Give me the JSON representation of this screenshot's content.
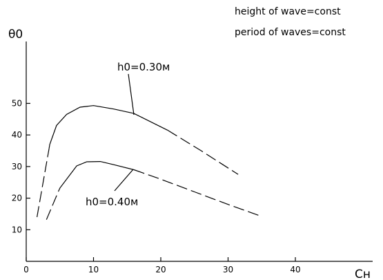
{
  "chart_data": {
    "type": "line",
    "xlabel": "Cн",
    "ylabel": "θ0",
    "xlim": [
      0,
      50
    ],
    "ylim": [
      0,
      55
    ],
    "xticks": [
      0,
      10,
      20,
      30,
      40
    ],
    "yticks": [
      10,
      20,
      30,
      40,
      50
    ],
    "notes": [
      "height of wave=const",
      "period of waves=const"
    ],
    "series": [
      {
        "name": "h0=0.30м",
        "x": [
          1.6,
          3.5,
          4.5,
          6,
          8,
          10,
          13,
          16,
          21,
          26,
          31.5
        ],
        "y": [
          14,
          37,
          43,
          46.5,
          48.8,
          49.3,
          48.2,
          46.8,
          41.5,
          35,
          27.5
        ],
        "solid_from_x": 3.4,
        "solid_to_x": 21
      },
      {
        "name": "h0=0.40м",
        "x": [
          3,
          5,
          7.5,
          9,
          11,
          13,
          16,
          20,
          25,
          30,
          35
        ],
        "y": [
          13.2,
          23.2,
          30.2,
          31.5,
          31.6,
          30.6,
          29,
          26,
          22,
          18,
          14.2
        ],
        "solid_from_x": 4.8,
        "solid_to_x": 16
      }
    ]
  }
}
